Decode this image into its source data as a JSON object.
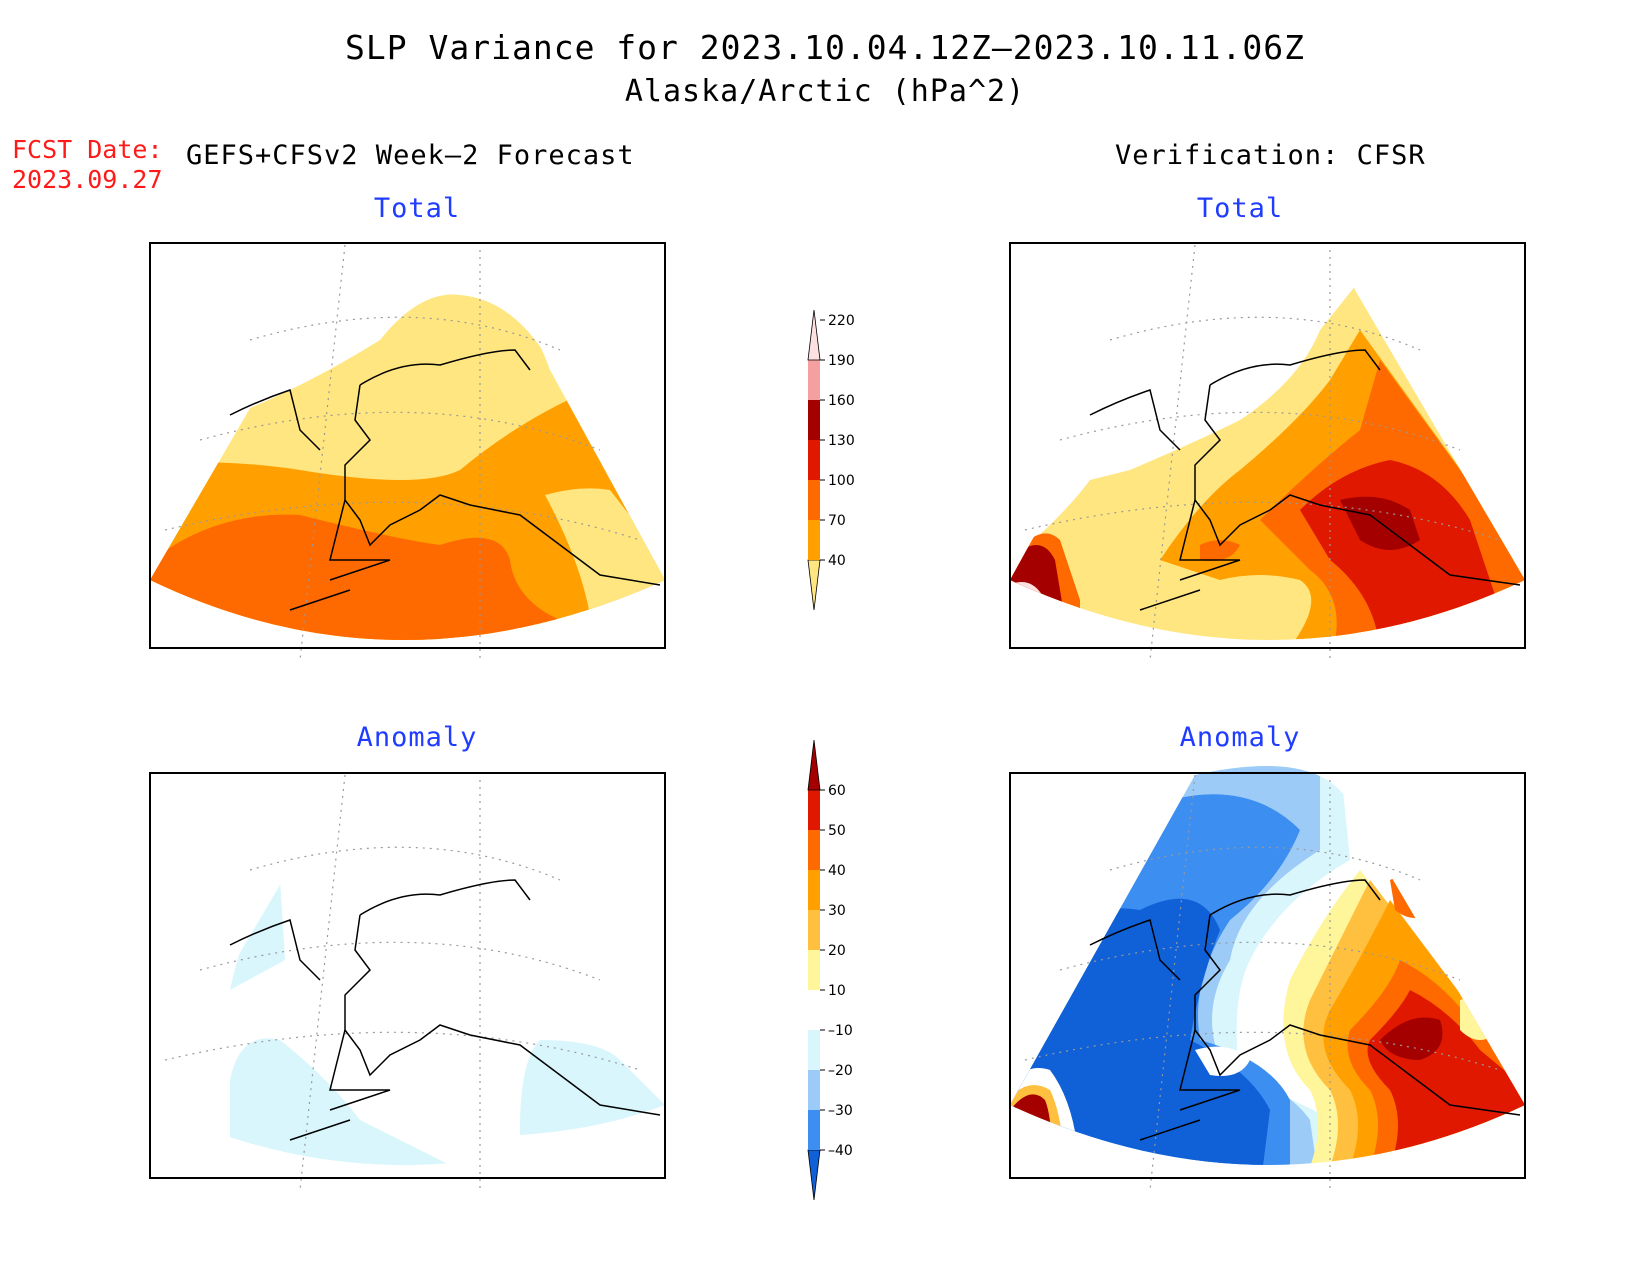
{
  "title": "SLP Variance for 2023.10.04.12Z–2023.10.11.06Z",
  "subtitle": "Alaska/Arctic (hPa^2)",
  "fcst_label": "FCST Date:",
  "fcst_date": "2023.09.27",
  "left_header": "GEFS+CFSv2 Week–2 Forecast",
  "right_header": "Verification: CFSR",
  "panels": {
    "forecast_total": {
      "title": "Total"
    },
    "verification_total": {
      "title": "Total"
    },
    "forecast_anomaly": {
      "title": "Anomaly"
    },
    "verification_anomaly": {
      "title": "Anomaly"
    }
  },
  "total_colorbar": {
    "labels": [
      "40",
      "70",
      "100",
      "130",
      "160",
      "190",
      "220"
    ],
    "colors": [
      "#ffe680",
      "#ffa000",
      "#ff6a00",
      "#e11800",
      "#a50000",
      "#f5a0a0",
      "#fde0e0"
    ]
  },
  "anomaly_colorbar": {
    "labels": [
      "–40",
      "–30",
      "–20",
      "–10",
      "10",
      "20",
      "30",
      "40",
      "50",
      "60"
    ],
    "colors": [
      "#1060d8",
      "#3c8ef0",
      "#9ccbf8",
      "#d8f6fc",
      "#ffffff",
      "#fff59a",
      "#ffc040",
      "#ffa000",
      "#ff6a00",
      "#e11800",
      "#a50000"
    ]
  }
}
